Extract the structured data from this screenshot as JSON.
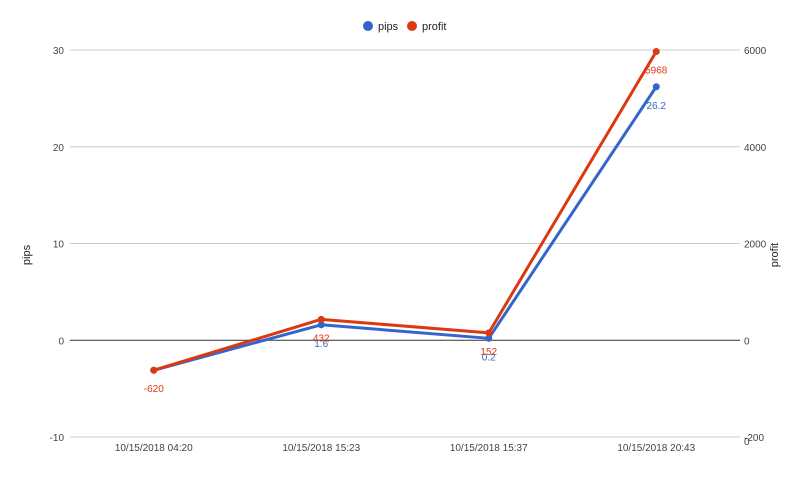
{
  "chart_data": {
    "type": "line",
    "title": "",
    "categories": [
      "10/15/2018 04:20",
      "10/15/2018 15:23",
      "10/15/2018 15:37",
      "10/15/2018 20:43"
    ],
    "series": [
      {
        "name": "pips",
        "axis": "left",
        "color": "#3366cc",
        "values": [
          -3.1,
          1.6,
          0.2,
          26.2
        ]
      },
      {
        "name": "profit",
        "axis": "right",
        "color": "#dc3912",
        "values": [
          -620,
          432,
          152,
          5968
        ]
      }
    ],
    "data_labels": {
      "pips": [
        "",
        "1.6",
        "0.2",
        "26.2"
      ],
      "profit": [
        "-620",
        "432",
        "152",
        "5968"
      ]
    },
    "left_axis": {
      "label": "pips",
      "ylim": [
        -10,
        30
      ],
      "ticks": [
        "-10",
        "0",
        "10",
        "20",
        "30"
      ]
    },
    "right_axis": {
      "label": "profit",
      "ylim": [
        -2000,
        6000
      ],
      "ticks": [
        "-200",
        "0",
        "2000",
        "4000",
        "6000"
      ],
      "extra_tick": "0"
    },
    "legend": {
      "position": "top-center"
    },
    "grid": true,
    "zero_line": true
  }
}
